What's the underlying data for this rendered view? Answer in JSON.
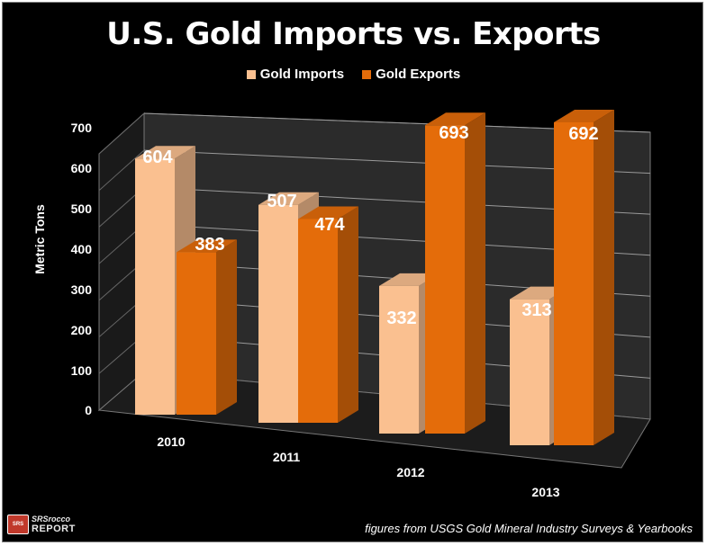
{
  "chart_data": {
    "type": "bar",
    "title": "U.S. Gold Imports vs. Exports",
    "xlabel": "",
    "ylabel": "Metric Tons",
    "categories": [
      "2010",
      "2011",
      "2012",
      "2013"
    ],
    "series": [
      {
        "name": "Gold Imports",
        "values": [
          604,
          507,
          332,
          313
        ],
        "color": "#FAC090",
        "data_labels": [
          "604",
          "507",
          "332",
          "313"
        ]
      },
      {
        "name": "Gold Exports",
        "values": [
          383,
          474,
          693,
          692
        ],
        "color": "#E46C0A",
        "data_labels": [
          "383",
          "474",
          "693",
          "692"
        ]
      }
    ],
    "ylim": [
      0,
      700
    ],
    "yticks": [
      "0",
      "100",
      "200",
      "300",
      "400",
      "500",
      "600",
      "700"
    ],
    "grid": true,
    "legend_position": "top-center"
  },
  "source_note": "figures from USGS Gold Mineral Industry Surveys & Yearbooks",
  "logo": {
    "top": "SRSrocco",
    "bottom": "REPORT"
  }
}
